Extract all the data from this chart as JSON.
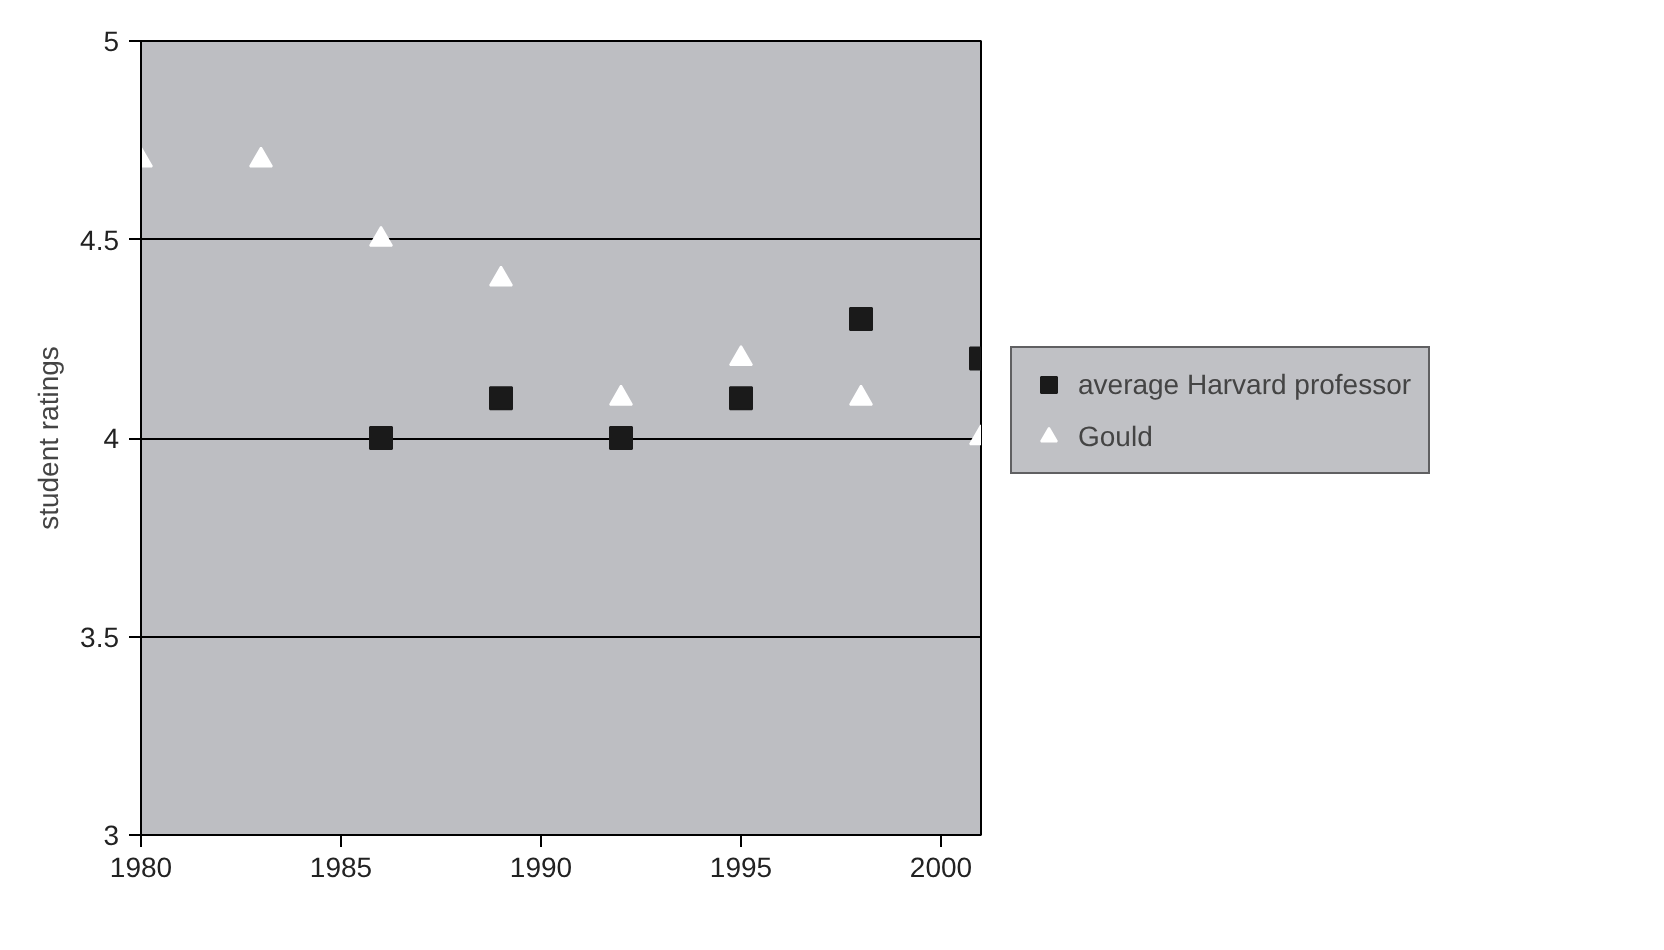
{
  "chart_data": {
    "type": "scatter",
    "ylabel": "student ratings",
    "xlim": [
      1980,
      2001
    ],
    "ylim": [
      3,
      5
    ],
    "xticks": [
      1980,
      1985,
      1990,
      1995,
      2000
    ],
    "yticks": [
      3,
      3.5,
      4,
      4.5,
      5
    ],
    "grid": "y",
    "legend": "right",
    "series": [
      {
        "name": "average Harvard professor",
        "color": "#1a1a1a",
        "marker": "square",
        "x": [
          1986,
          1989,
          1992,
          1995,
          1998,
          2001
        ],
        "values": [
          4.0,
          4.1,
          4.0,
          4.1,
          4.3,
          4.2
        ]
      },
      {
        "name": "Gould",
        "color": "#ffffff",
        "marker": "triangle",
        "x": [
          1980,
          1983,
          1986,
          1989,
          1992,
          1995,
          1998,
          2001
        ],
        "values": [
          4.7,
          4.7,
          4.5,
          4.4,
          4.1,
          4.2,
          4.1,
          4.0
        ]
      }
    ]
  }
}
